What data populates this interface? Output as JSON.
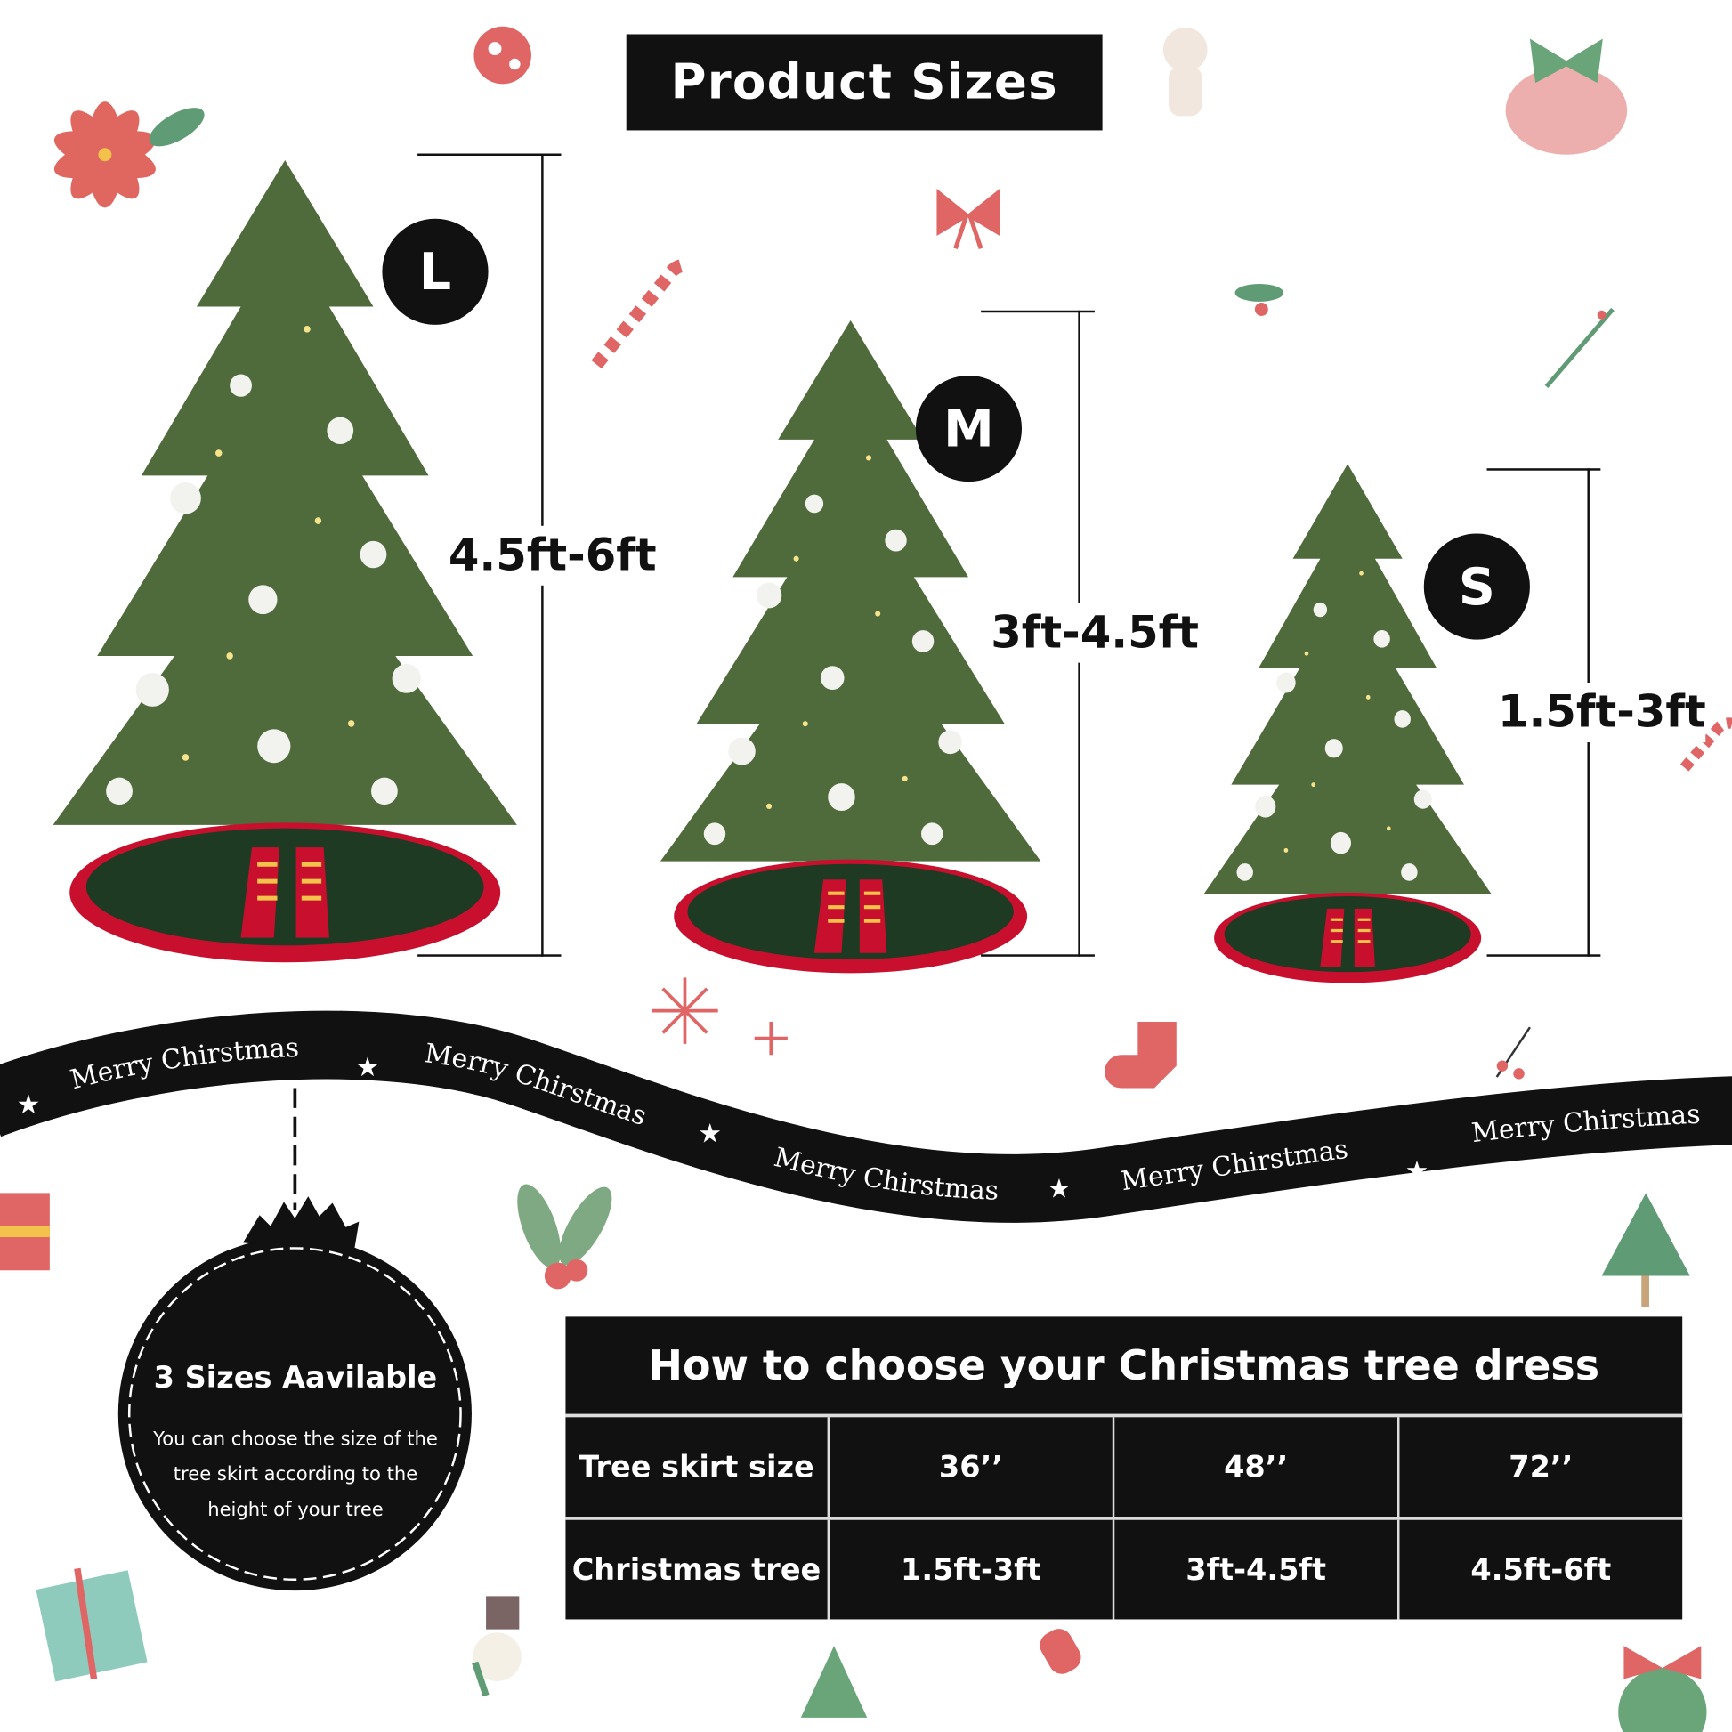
{
  "title": "Product Sizes",
  "sizes": [
    {
      "badge": "L",
      "range": "4.5ft-6ft"
    },
    {
      "badge": "M",
      "range": "3ft-4.5ft"
    },
    {
      "badge": "S",
      "range": "1.5ft-3ft"
    }
  ],
  "ribbon_text": "Merry Chirstmas",
  "ornament": {
    "heading": "3 Sizes Aavilable",
    "body_lines": [
      "You can choose the size of the",
      "tree skirt according to the",
      "height of your tree"
    ]
  },
  "table": {
    "title": "How to choose your Christmas tree dress",
    "rows": [
      {
        "label": "Tree skirt size",
        "values": [
          "36’’",
          "48’’",
          "72’’"
        ]
      },
      {
        "label": "Christmas tree",
        "values": [
          "1.5ft-3ft",
          "3ft-4.5ft",
          "4.5ft-6ft"
        ]
      }
    ]
  },
  "colors": {
    "dark": "#111111",
    "tree_green": "#4f6b3c",
    "skirt_green": "#1f3a22",
    "skirt_red": "#c8102e",
    "accent_red": "#e06666",
    "accent_green": "#6aa57a"
  }
}
